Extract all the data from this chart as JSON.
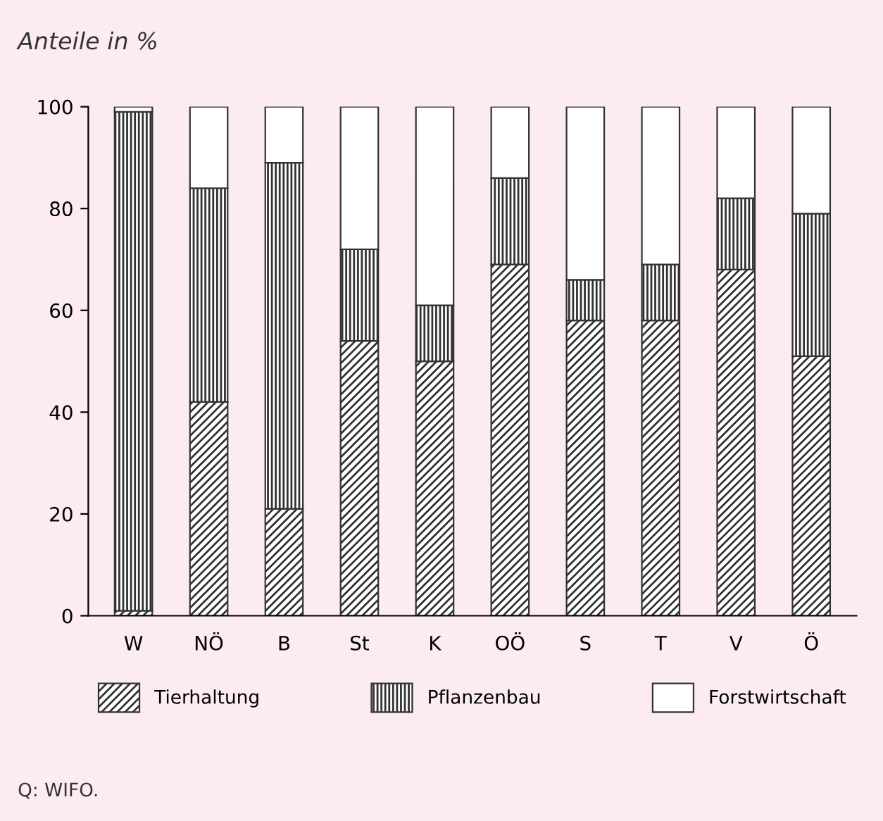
{
  "chart_data": {
    "type": "bar",
    "stacked": true,
    "ylabel": "Anteile in %",
    "categories": [
      "W",
      "NÖ",
      "B",
      "St",
      "K",
      "OÖ",
      "S",
      "T",
      "V",
      "Ö"
    ],
    "series": [
      {
        "name": "Tierhaltung",
        "color": "#333333",
        "values": [
          1,
          42,
          21,
          54,
          50,
          69,
          58,
          58,
          68,
          51
        ]
      },
      {
        "name": "Pflanzenbau",
        "color": "#333333",
        "values": [
          98,
          42,
          68,
          18,
          11,
          17,
          8,
          11,
          14,
          28
        ]
      },
      {
        "name": "Forstwirtschaft",
        "color": "#ffffff",
        "values": [
          1,
          16,
          11,
          28,
          39,
          14,
          34,
          31,
          18,
          21
        ]
      }
    ],
    "ylim": [
      0,
      100
    ],
    "yticks": [
      0,
      20,
      40,
      60,
      80,
      100
    ],
    "grid": false,
    "legend": "bottom",
    "annotations": [
      "Q: WIFO."
    ]
  }
}
